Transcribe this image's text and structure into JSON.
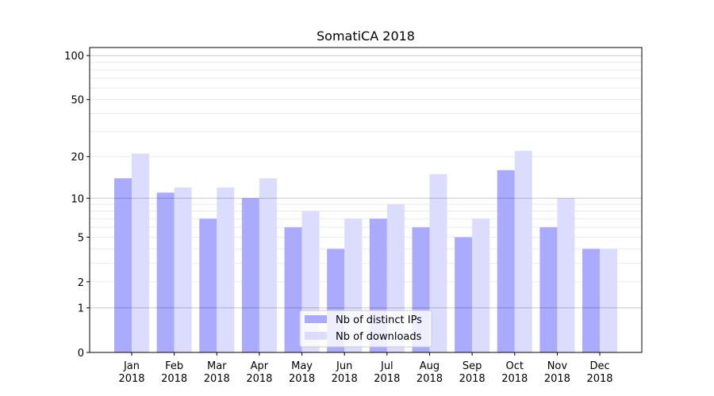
{
  "chart_data": {
    "type": "bar",
    "title": "SomatiCA 2018",
    "xlabel": "",
    "ylabel": "",
    "yscale": "log10(v+1)",
    "ylim": [
      0,
      114
    ],
    "yticks": [
      0,
      1,
      2,
      5,
      10,
      20,
      50,
      100
    ],
    "ytick_labels": [
      "0",
      "1",
      "2",
      "5",
      "10",
      "20",
      "50",
      "100"
    ],
    "major_grid": [
      1,
      10,
      100
    ],
    "minor_grid": [
      2,
      3,
      4,
      5,
      6,
      7,
      8,
      9,
      20,
      30,
      40,
      50,
      60,
      70,
      80,
      90
    ],
    "grid": true,
    "categories": [
      [
        "Jan",
        "2018"
      ],
      [
        "Feb",
        "2018"
      ],
      [
        "Mar",
        "2018"
      ],
      [
        "Apr",
        "2018"
      ],
      [
        "May",
        "2018"
      ],
      [
        "Jun",
        "2018"
      ],
      [
        "Jul",
        "2018"
      ],
      [
        "Aug",
        "2018"
      ],
      [
        "Sep",
        "2018"
      ],
      [
        "Oct",
        "2018"
      ],
      [
        "Nov",
        "2018"
      ],
      [
        "Dec",
        "2018"
      ]
    ],
    "series": [
      {
        "name": "Nb of distinct IPs",
        "color": "#aaaaff",
        "values": [
          14,
          11,
          7,
          10,
          6,
          4,
          7,
          6,
          5,
          16,
          6,
          4
        ]
      },
      {
        "name": "Nb of downloads",
        "color": "#dcdcff",
        "values": [
          21,
          12,
          12,
          14,
          8,
          7,
          9,
          15,
          7,
          22,
          10,
          4
        ]
      }
    ],
    "legend": "bottom-center"
  }
}
